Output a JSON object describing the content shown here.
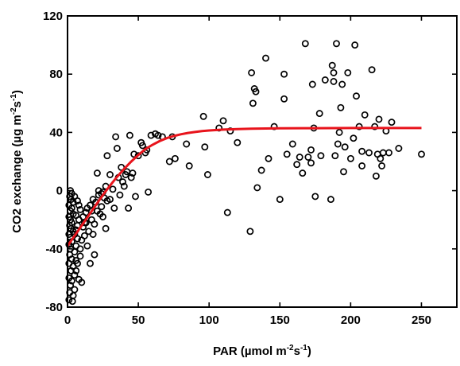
{
  "chart_data": {
    "type": "scatter",
    "xlabel": "PAR (µmol m⁻²s⁻¹)",
    "ylabel": "CO2 exchange (µg m⁻²s⁻¹)",
    "xlabel_parts": [
      "PAR (µmol m",
      "-2",
      "s",
      "-1",
      ")"
    ],
    "ylabel_parts": [
      "CO2 exchange (µg m",
      "-2",
      "s",
      "-1",
      ")"
    ],
    "xlim": [
      0,
      275
    ],
    "ylim": [
      -80,
      120
    ],
    "x_ticks": [
      0,
      50,
      100,
      150,
      200,
      250
    ],
    "y_ticks": [
      -80,
      -40,
      0,
      40,
      80,
      120
    ],
    "x_tick_labels": [
      "0",
      "50",
      "100",
      "150",
      "200",
      "250"
    ],
    "y_tick_labels": [
      "-80",
      "-40",
      "0",
      "40",
      "80",
      "120"
    ],
    "grid": false,
    "marker_color": "#000000",
    "fit_color": "#e8141c",
    "fit_curve": {
      "x": [
        0,
        5,
        10,
        15,
        20,
        25,
        30,
        35,
        40,
        45,
        50,
        55,
        60,
        65,
        70,
        75,
        80,
        85,
        90,
        95,
        100,
        110,
        120,
        130,
        140,
        150,
        175,
        200,
        225,
        250
      ],
      "y": [
        -38,
        -31,
        -24,
        -17,
        -10,
        -3,
        3.5,
        9.5,
        15,
        20,
        24.5,
        28.5,
        31.5,
        34,
        36,
        37.5,
        38.7,
        39.6,
        40.3,
        40.9,
        41.3,
        41.9,
        42.3,
        42.5,
        42.7,
        42.8,
        42.9,
        43,
        43,
        43
      ]
    },
    "series": [
      {
        "points": [
          [
            1,
            -75
          ],
          [
            1.5,
            -70
          ],
          [
            2,
            -65
          ],
          [
            1,
            -60
          ],
          [
            2.5,
            -55
          ],
          [
            1,
            -50
          ],
          [
            3,
            -47
          ],
          [
            1.5,
            -44
          ],
          [
            2,
            -40
          ],
          [
            1,
            -37
          ],
          [
            3,
            -35
          ],
          [
            2,
            -32
          ],
          [
            1,
            -30
          ],
          [
            4,
            -28
          ],
          [
            2.5,
            -26
          ],
          [
            1.5,
            -24
          ],
          [
            3,
            -22
          ],
          [
            2,
            -20
          ],
          [
            1,
            -18
          ],
          [
            4,
            -16
          ],
          [
            2,
            -14
          ],
          [
            3,
            -12
          ],
          [
            1,
            -10
          ],
          [
            4,
            -8
          ],
          [
            2.5,
            -6
          ],
          [
            1.5,
            -4
          ],
          [
            3,
            -2
          ],
          [
            2,
            0
          ],
          [
            3.5,
            -76
          ],
          [
            4,
            -72
          ],
          [
            5,
            -68
          ],
          [
            3,
            -62
          ],
          [
            5,
            -58
          ],
          [
            4,
            -52
          ],
          [
            6,
            -48
          ],
          [
            5,
            -42
          ],
          [
            6,
            -38
          ],
          [
            7,
            -33
          ],
          [
            5,
            -30
          ],
          [
            6,
            -27
          ],
          [
            7,
            -24
          ],
          [
            8,
            -20
          ],
          [
            6,
            -17
          ],
          [
            9,
            -13
          ],
          [
            8,
            -10
          ],
          [
            7,
            -7
          ],
          [
            5,
            -4
          ],
          [
            10,
            -34
          ],
          [
            9,
            -40
          ],
          [
            11,
            -25
          ],
          [
            12,
            -22
          ],
          [
            11,
            -18
          ],
          [
            13,
            -15
          ],
          [
            12,
            -31
          ],
          [
            8,
            -61
          ],
          [
            10,
            -63
          ],
          [
            6,
            -55
          ],
          [
            9,
            -45
          ],
          [
            7,
            -50
          ],
          [
            14,
            -12
          ],
          [
            15,
            -28
          ],
          [
            16,
            -10
          ],
          [
            17,
            -20
          ],
          [
            18,
            -6
          ],
          [
            19,
            -23
          ],
          [
            20,
            -8
          ],
          [
            21,
            -14
          ],
          [
            22,
            -3
          ],
          [
            23,
            -16
          ],
          [
            24,
            -11
          ],
          [
            25,
            -1
          ],
          [
            25,
            -18
          ],
          [
            27,
            3
          ],
          [
            27,
            -26
          ],
          [
            28,
            -7
          ],
          [
            16,
            -50
          ],
          [
            19,
            -44
          ],
          [
            14,
            -38
          ],
          [
            18,
            -30
          ],
          [
            13,
            -22
          ],
          [
            17,
            -14
          ],
          [
            21,
            12
          ],
          [
            24,
            -2
          ],
          [
            26,
            -5
          ],
          [
            22,
            0
          ],
          [
            28,
            24
          ],
          [
            30,
            11
          ],
          [
            30,
            -6
          ],
          [
            32,
            1
          ],
          [
            33,
            -12
          ],
          [
            34,
            37
          ],
          [
            35,
            29
          ],
          [
            36,
            9
          ],
          [
            37,
            -3
          ],
          [
            38,
            16
          ],
          [
            39,
            6
          ],
          [
            40,
            3
          ],
          [
            41,
            11
          ],
          [
            42,
            13
          ],
          [
            43,
            -12
          ],
          [
            44,
            38
          ],
          [
            45,
            9
          ],
          [
            46,
            12
          ],
          [
            47,
            25
          ],
          [
            48,
            -4
          ],
          [
            50,
            24
          ],
          [
            52,
            33
          ],
          [
            53,
            31
          ],
          [
            55,
            26
          ],
          [
            56,
            28
          ],
          [
            57,
            -1
          ],
          [
            59,
            38
          ],
          [
            62,
            39
          ],
          [
            64,
            38
          ],
          [
            67,
            37
          ],
          [
            72,
            20
          ],
          [
            74,
            37
          ],
          [
            76,
            22
          ],
          [
            84,
            32
          ],
          [
            86,
            17
          ],
          [
            96,
            51
          ],
          [
            99,
            11
          ],
          [
            97,
            30
          ],
          [
            107,
            43
          ],
          [
            110,
            48
          ],
          [
            113,
            -15
          ],
          [
            115,
            41
          ],
          [
            120,
            33
          ],
          [
            129,
            -28
          ],
          [
            130,
            81
          ],
          [
            131,
            60
          ],
          [
            132,
            70
          ],
          [
            133,
            68
          ],
          [
            134,
            2
          ],
          [
            137,
            14
          ],
          [
            140,
            91
          ],
          [
            142,
            22
          ],
          [
            146,
            44
          ],
          [
            150,
            -6
          ],
          [
            153,
            80
          ],
          [
            153,
            63
          ],
          [
            155,
            25
          ],
          [
            159,
            32
          ],
          [
            162,
            18
          ],
          [
            164,
            23
          ],
          [
            166,
            12
          ],
          [
            168,
            101
          ],
          [
            170,
            23
          ],
          [
            172,
            19
          ],
          [
            172,
            28
          ],
          [
            173,
            73
          ],
          [
            174,
            43
          ],
          [
            175,
            -4
          ],
          [
            178,
            53
          ],
          [
            179,
            24
          ],
          [
            182,
            76
          ],
          [
            186,
            -6
          ],
          [
            187,
            86
          ],
          [
            188,
            75
          ],
          [
            188,
            81
          ],
          [
            189,
            24
          ],
          [
            190,
            101
          ],
          [
            191,
            32
          ],
          [
            192,
            40
          ],
          [
            193,
            57
          ],
          [
            194,
            73
          ],
          [
            195,
            13
          ],
          [
            196,
            30
          ],
          [
            198,
            81
          ],
          [
            200,
            22
          ],
          [
            202,
            36
          ],
          [
            203,
            100
          ],
          [
            204,
            65
          ],
          [
            206,
            44
          ],
          [
            208,
            27
          ],
          [
            208,
            17
          ],
          [
            210,
            52
          ],
          [
            213,
            26
          ],
          [
            215,
            83
          ],
          [
            217,
            44
          ],
          [
            218,
            10
          ],
          [
            219,
            25
          ],
          [
            220,
            49
          ],
          [
            221,
            22
          ],
          [
            222,
            17
          ],
          [
            223,
            26
          ],
          [
            225,
            41
          ],
          [
            227,
            26
          ],
          [
            229,
            47
          ],
          [
            234,
            29
          ],
          [
            250,
            25
          ]
        ]
      }
    ]
  }
}
